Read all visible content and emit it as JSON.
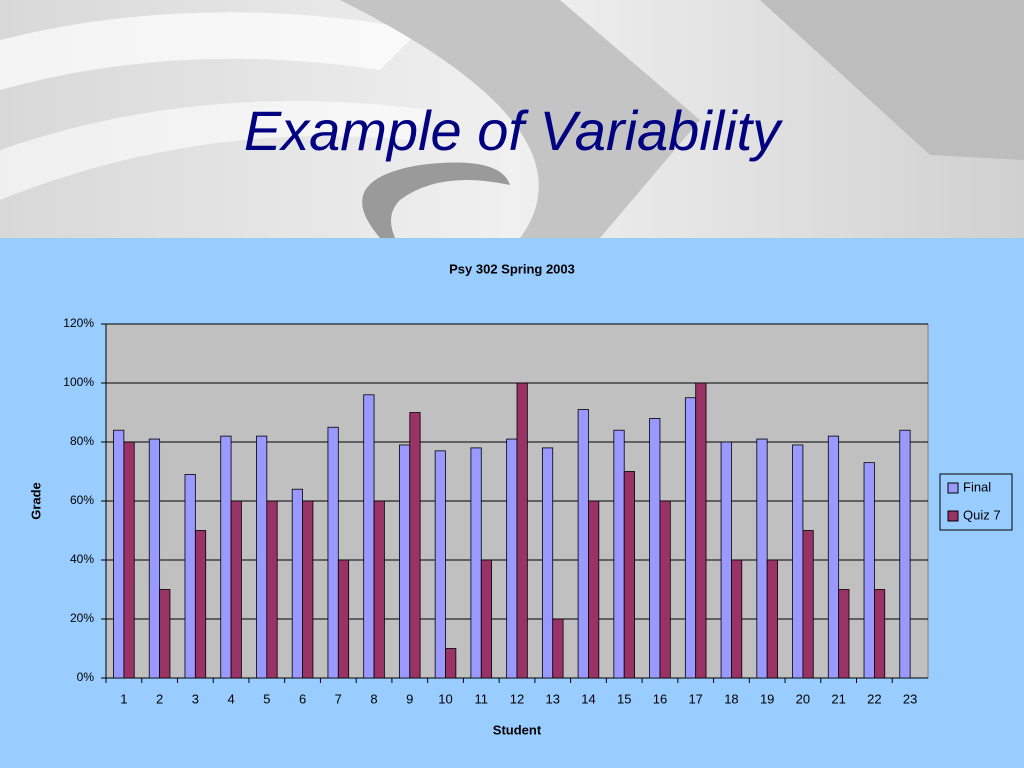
{
  "header": {
    "title": "Example of Variability"
  },
  "chart_data": {
    "type": "bar",
    "title": "Psy 302 Spring 2003",
    "xlabel": "Student",
    "ylabel": "Grade",
    "categories": [
      "1",
      "2",
      "3",
      "4",
      "5",
      "6",
      "7",
      "8",
      "9",
      "10",
      "11",
      "12",
      "13",
      "14",
      "15",
      "16",
      "17",
      "18",
      "19",
      "20",
      "21",
      "22",
      "23"
    ],
    "series": [
      {
        "name": "Final",
        "color": "#9999ff",
        "values": [
          84,
          81,
          69,
          82,
          82,
          64,
          85,
          96,
          79,
          77,
          78,
          81,
          78,
          91,
          84,
          88,
          95,
          80,
          81,
          79,
          82,
          73,
          84
        ]
      },
      {
        "name": "Quiz 7",
        "color": "#993366",
        "values": [
          80,
          30,
          50,
          60,
          60,
          60,
          40,
          60,
          90,
          10,
          40,
          100,
          20,
          60,
          70,
          60,
          100,
          40,
          40,
          50,
          30,
          30,
          null
        ]
      }
    ],
    "ylim": [
      0,
      120
    ],
    "yticks": [
      {
        "value": 0,
        "label": "0%"
      },
      {
        "value": 20,
        "label": "20%"
      },
      {
        "value": 40,
        "label": "40%"
      },
      {
        "value": 60,
        "label": "60%"
      },
      {
        "value": 80,
        "label": "80%"
      },
      {
        "value": 100,
        "label": "100%"
      },
      {
        "value": 120,
        "label": "120%"
      }
    ],
    "grid": true,
    "legend": "right"
  }
}
